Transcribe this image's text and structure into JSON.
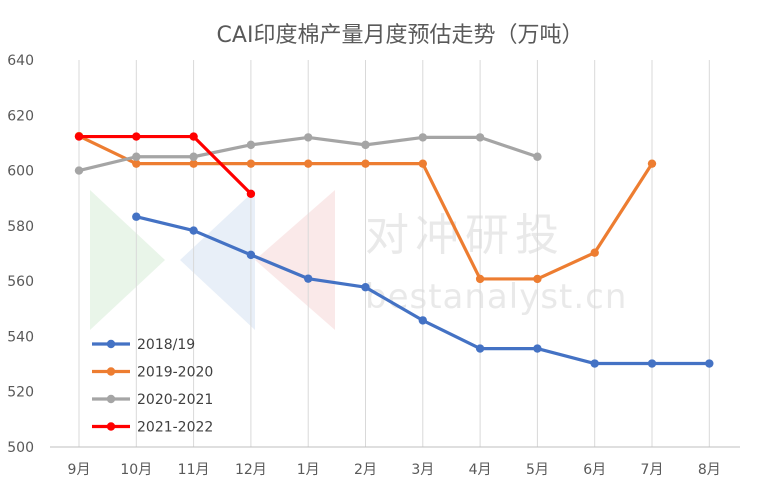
{
  "chart_data": {
    "type": "line",
    "title": "CAI印度棉产量月度预估走势（万吨）",
    "categories": [
      "9月",
      "10月",
      "11月",
      "12月",
      "1月",
      "2月",
      "3月",
      "4月",
      "5月",
      "6月",
      "7月",
      "8月"
    ],
    "ylim": [
      500,
      640
    ],
    "yticks": [
      500,
      520,
      540,
      560,
      580,
      600,
      620,
      640
    ],
    "grid": "vertical",
    "legend_position": "bottom-left",
    "series": [
      {
        "name": "2018/19",
        "color": "#4472C4",
        "values": [
          null,
          583.3,
          578.3,
          569.5,
          560.9,
          557.8,
          545.8,
          535.6,
          535.6,
          530.2,
          530.2,
          530.2
        ]
      },
      {
        "name": "2019-2020",
        "color": "#ED7D31",
        "values": [
          612.5,
          602.5,
          602.5,
          602.5,
          602.5,
          602.5,
          602.5,
          560.8,
          560.8,
          570.3,
          602.5,
          null
        ]
      },
      {
        "name": "2020-2021",
        "color": "#A5A5A5",
        "values": [
          600.0,
          605.0,
          605.0,
          609.3,
          612.0,
          609.3,
          612.0,
          612.0,
          605.0,
          null,
          null,
          null
        ]
      },
      {
        "name": "2021-2022",
        "color": "#FF0000",
        "values": [
          612.3,
          612.3,
          612.3,
          591.6,
          null,
          null,
          null,
          null,
          null,
          null,
          null,
          null
        ]
      }
    ]
  },
  "watermark": {
    "text": "对冲研投",
    "url": "bestanalyst.cn"
  }
}
